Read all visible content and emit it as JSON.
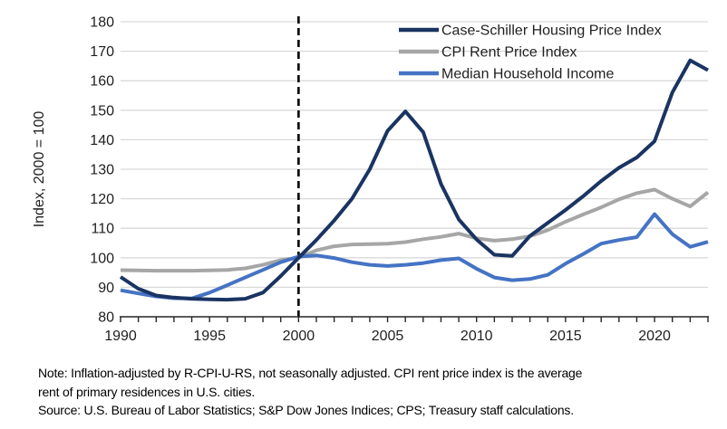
{
  "chart_data": {
    "type": "line",
    "title": "",
    "ylabel": "Index, 2000 = 100",
    "ylim": [
      80,
      180
    ],
    "ytick_step": 10,
    "grid": true,
    "legend_position": "top-right-inside",
    "reference_line_x": 2000,
    "x": [
      1990,
      1991,
      1992,
      1993,
      1994,
      1995,
      1996,
      1997,
      1998,
      1999,
      2000,
      2001,
      2002,
      2003,
      2004,
      2005,
      2006,
      2007,
      2008,
      2009,
      2010,
      2011,
      2012,
      2013,
      2014,
      2015,
      2016,
      2017,
      2018,
      2019,
      2020,
      2021,
      2022,
      2023
    ],
    "x_tick_labels": [
      "1990",
      "1995",
      "2000",
      "2005",
      "2010",
      "2015",
      "2020"
    ],
    "x_tick_years": [
      1990,
      1995,
      2000,
      2005,
      2010,
      2015,
      2020
    ],
    "x_minor_tick_every": 1,
    "series": [
      {
        "name": "Case-Schiller Housing Price Index",
        "color": "#1a3462",
        "values": [
          93.5,
          89.5,
          87.2,
          86.5,
          86.1,
          85.9,
          85.8,
          86.1,
          88.2,
          93.8,
          100,
          106,
          112.6,
          120,
          130,
          143,
          149.6,
          142.6,
          125,
          113,
          106.2,
          101,
          100.6,
          107.4,
          111.8,
          116.2,
          120.9,
          126,
          130.5,
          134,
          139.5,
          156,
          166.9,
          163.6
        ]
      },
      {
        "name": "CPI Rent Price Index",
        "color": "#a6a6a6",
        "values": [
          95.8,
          95.7,
          95.6,
          95.6,
          95.6,
          95.7,
          95.9,
          96.4,
          97.6,
          99.2,
          100,
          102.5,
          103.9,
          104.5,
          104.6,
          104.8,
          105.3,
          106.3,
          107.1,
          108.2,
          106.6,
          105.8,
          106.3,
          107.3,
          109.4,
          112.2,
          114.7,
          117.1,
          119.8,
          121.9,
          123.1,
          120,
          117.4,
          122.2
        ]
      },
      {
        "name": "Median Household Income",
        "color": "#4573c4",
        "values": [
          89,
          87.9,
          86.9,
          86.3,
          86.2,
          88.2,
          90.7,
          93.3,
          95.9,
          98.5,
          100.4,
          100.8,
          99.9,
          98.5,
          97.6,
          97.2,
          97.6,
          98.2,
          99.2,
          99.8,
          96.3,
          93.3,
          92.4,
          92.8,
          94.2,
          98,
          101.3,
          104.8,
          106,
          107,
          114.8,
          108,
          103.7,
          105.4
        ]
      }
    ],
    "colors": {
      "gridline": "#d9d9d9",
      "axis": "#262626",
      "reference_line": "#000000"
    }
  },
  "notes": {
    "line1": "Note: Inflation-adjusted by R-CPI-U-RS, not seasonally adjusted. CPI rent price index is the average",
    "line2": "rent of primary residences in U.S. cities.",
    "source": "Source: U.S. Bureau of Labor Statistics; S&P Dow Jones Indices; CPS; Treasury staff calculations."
  }
}
